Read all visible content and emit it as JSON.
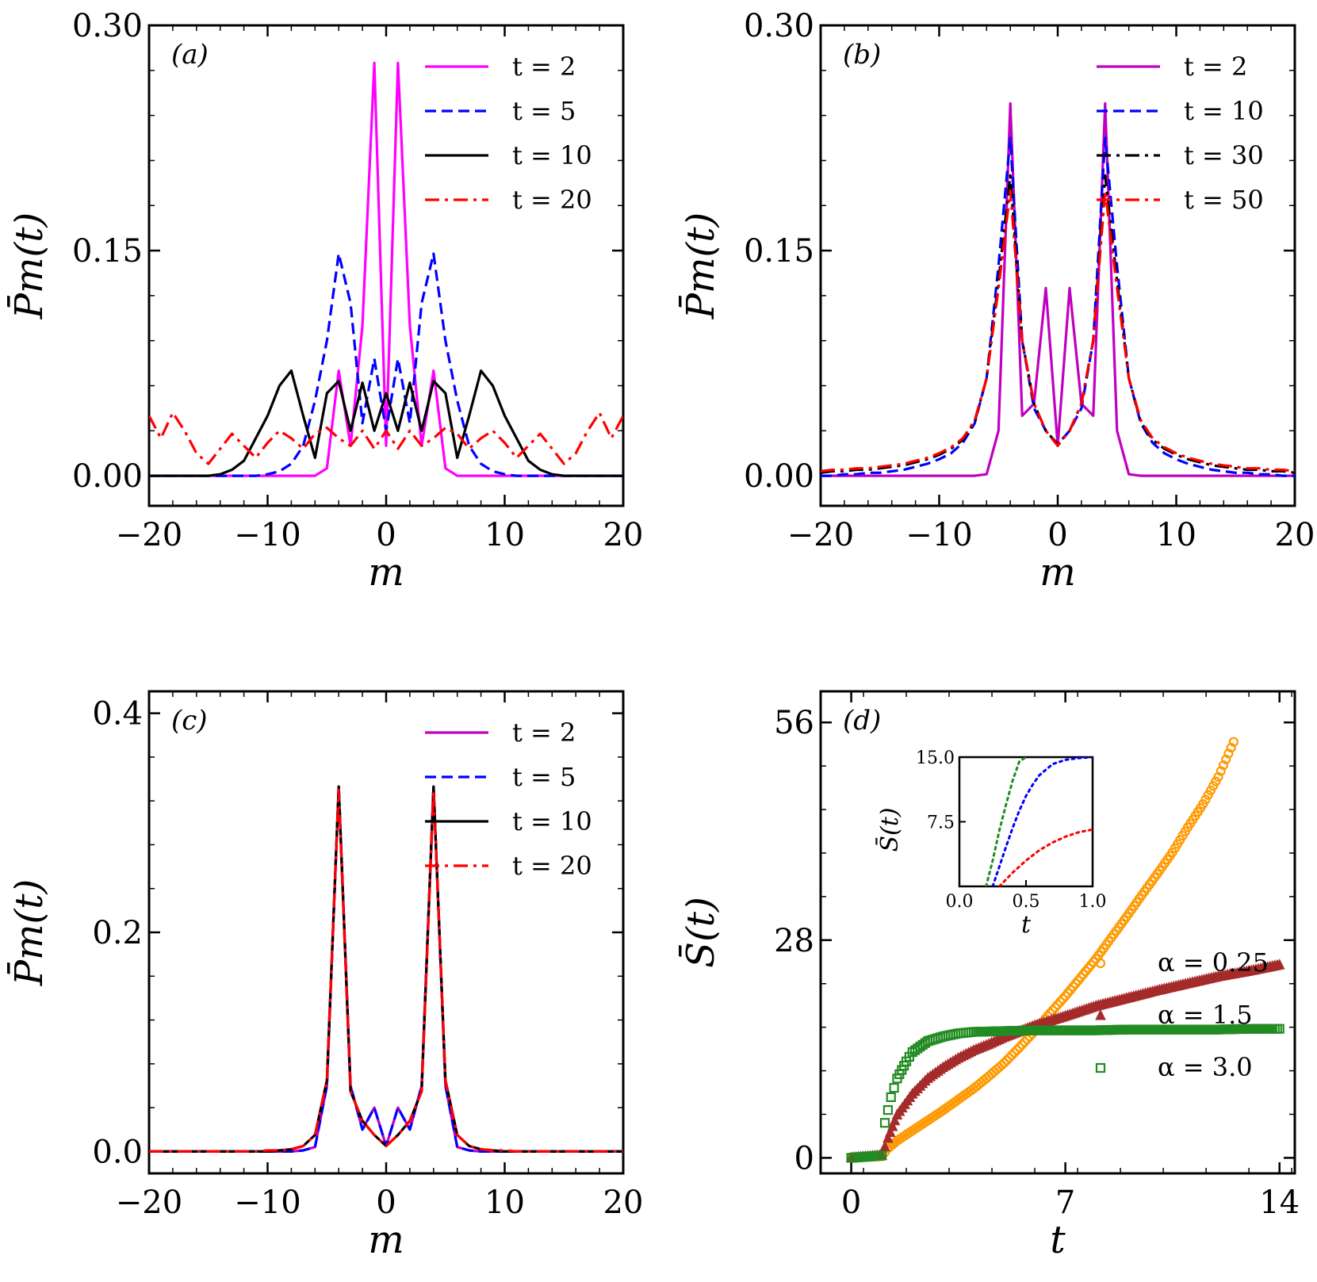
{
  "figure": {
    "panels": [
      {
        "id": "a",
        "tag": "(a)"
      },
      {
        "id": "b",
        "tag": "(b)"
      },
      {
        "id": "c",
        "tag": "(c)"
      },
      {
        "id": "d",
        "tag": "(d)"
      }
    ]
  },
  "chart_data": [
    {
      "id": "a",
      "type": "line",
      "title": "(a)",
      "xlabel": "m",
      "ylabel": "P̄m(t)",
      "xlim": [
        -20,
        20
      ],
      "ylim": [
        -0.02,
        0.3
      ],
      "xticks": [
        -20,
        -10,
        0,
        10,
        20
      ],
      "xtick_labels": [
        "−20",
        "−10",
        "0",
        "10",
        "20"
      ],
      "yticks": [
        0.0,
        0.15,
        0.3
      ],
      "ytick_labels": [
        "0.00",
        "0.15",
        "0.30"
      ],
      "legend_position": "top-right",
      "x": [
        -20,
        -19,
        -18,
        -17,
        -16,
        -15,
        -14,
        -13,
        -12,
        -11,
        -10,
        -9,
        -8,
        -7,
        -6,
        -5,
        -4,
        -3,
        -2,
        -1,
        0,
        1,
        2,
        3,
        4,
        5,
        6,
        7,
        8,
        9,
        10,
        11,
        12,
        13,
        14,
        15,
        16,
        17,
        18,
        19,
        20
      ],
      "series": [
        {
          "name": "t = 2",
          "color": "#ff00ff",
          "dash": "solid",
          "values": [
            0,
            0,
            0,
            0,
            0,
            0,
            0,
            0,
            0,
            0,
            0,
            0,
            0,
            0,
            0,
            0.005,
            0.07,
            0.02,
            0.1,
            0.275,
            0.02,
            0.275,
            0.1,
            0.02,
            0.07,
            0.005,
            0,
            0,
            0,
            0,
            0,
            0,
            0,
            0,
            0,
            0,
            0,
            0,
            0,
            0,
            0
          ]
        },
        {
          "name": "t = 5",
          "color": "#0000ff",
          "dash": "dashed",
          "values": [
            0,
            0,
            0,
            0,
            0,
            0,
            0,
            0,
            0,
            0,
            0.001,
            0.003,
            0.008,
            0.02,
            0.05,
            0.09,
            0.148,
            0.115,
            0.035,
            0.078,
            0.03,
            0.078,
            0.035,
            0.115,
            0.148,
            0.09,
            0.05,
            0.02,
            0.008,
            0.003,
            0.001,
            0,
            0,
            0,
            0,
            0,
            0,
            0,
            0,
            0,
            0
          ]
        },
        {
          "name": "t = 10",
          "color": "#000000",
          "dash": "solid",
          "values": [
            0,
            0,
            0,
            0,
            0,
            0,
            0.001,
            0.004,
            0.01,
            0.025,
            0.04,
            0.06,
            0.07,
            0.04,
            0.012,
            0.055,
            0.063,
            0.03,
            0.062,
            0.03,
            0.055,
            0.03,
            0.062,
            0.03,
            0.063,
            0.055,
            0.012,
            0.04,
            0.07,
            0.06,
            0.04,
            0.025,
            0.01,
            0.004,
            0.001,
            0,
            0,
            0,
            0,
            0,
            0
          ]
        },
        {
          "name": "t = 20",
          "color": "#ff0000",
          "dash": "dashdot",
          "values": [
            0.04,
            0.025,
            0.042,
            0.03,
            0.015,
            0.008,
            0.018,
            0.028,
            0.02,
            0.012,
            0.022,
            0.03,
            0.025,
            0.018,
            0.028,
            0.032,
            0.025,
            0.02,
            0.03,
            0.018,
            0.03,
            0.018,
            0.03,
            0.02,
            0.025,
            0.032,
            0.028,
            0.018,
            0.025,
            0.03,
            0.022,
            0.012,
            0.02,
            0.028,
            0.018,
            0.008,
            0.015,
            0.03,
            0.042,
            0.025,
            0.04
          ]
        }
      ]
    },
    {
      "id": "b",
      "type": "line",
      "title": "(b)",
      "xlabel": "m",
      "ylabel": "P̄m(t)",
      "xlim": [
        -20,
        20
      ],
      "ylim": [
        -0.02,
        0.3
      ],
      "xticks": [
        -20,
        -10,
        0,
        10,
        20
      ],
      "xtick_labels": [
        "−20",
        "−10",
        "0",
        "10",
        "20"
      ],
      "yticks": [
        0.0,
        0.15,
        0.3
      ],
      "ytick_labels": [
        "0.00",
        "0.15",
        "0.30"
      ],
      "legend_position": "top-right",
      "x": [
        -20,
        -19,
        -18,
        -17,
        -16,
        -15,
        -14,
        -13,
        -12,
        -11,
        -10,
        -9,
        -8,
        -7,
        -6,
        -5,
        -4,
        -3,
        -2,
        -1,
        0,
        1,
        2,
        3,
        4,
        5,
        6,
        7,
        8,
        9,
        10,
        11,
        12,
        13,
        14,
        15,
        16,
        17,
        18,
        19,
        20
      ],
      "series": [
        {
          "name": "t = 2",
          "color": "#c000c0",
          "dash": "solid",
          "values": [
            0,
            0,
            0,
            0,
            0,
            0,
            0,
            0,
            0,
            0,
            0,
            0,
            0,
            0,
            0.001,
            0.03,
            0.248,
            0.04,
            0.048,
            0.125,
            0.02,
            0.125,
            0.048,
            0.04,
            0.248,
            0.03,
            0.001,
            0,
            0,
            0,
            0,
            0,
            0,
            0,
            0,
            0,
            0,
            0,
            0,
            0,
            0
          ]
        },
        {
          "name": "t = 10",
          "color": "#0000ff",
          "dash": "dashed",
          "values": [
            0,
            0,
            0.001,
            0.001,
            0.002,
            0.002,
            0.003,
            0.004,
            0.006,
            0.008,
            0.011,
            0.015,
            0.022,
            0.035,
            0.065,
            0.14,
            0.225,
            0.09,
            0.045,
            0.03,
            0.021,
            0.03,
            0.045,
            0.09,
            0.225,
            0.14,
            0.065,
            0.035,
            0.022,
            0.015,
            0.011,
            0.008,
            0.006,
            0.004,
            0.003,
            0.002,
            0.002,
            0.001,
            0.001,
            0,
            0
          ]
        },
        {
          "name": "t = 30",
          "color": "#000000",
          "dash": "dashdot",
          "values": [
            0.002,
            0.003,
            0.003,
            0.004,
            0.004,
            0.005,
            0.006,
            0.007,
            0.009,
            0.011,
            0.014,
            0.018,
            0.024,
            0.036,
            0.065,
            0.13,
            0.2,
            0.09,
            0.048,
            0.03,
            0.021,
            0.03,
            0.048,
            0.09,
            0.2,
            0.13,
            0.065,
            0.036,
            0.024,
            0.018,
            0.014,
            0.011,
            0.009,
            0.007,
            0.006,
            0.005,
            0.004,
            0.004,
            0.003,
            0.003,
            0.002
          ]
        },
        {
          "name": "t = 50",
          "color": "#ff0000",
          "dash": "dashdot",
          "values": [
            0.003,
            0.004,
            0.004,
            0.005,
            0.005,
            0.006,
            0.007,
            0.008,
            0.01,
            0.012,
            0.015,
            0.019,
            0.025,
            0.037,
            0.065,
            0.125,
            0.19,
            0.09,
            0.048,
            0.03,
            0.02,
            0.03,
            0.048,
            0.09,
            0.19,
            0.125,
            0.065,
            0.037,
            0.025,
            0.019,
            0.015,
            0.012,
            0.01,
            0.008,
            0.007,
            0.006,
            0.005,
            0.005,
            0.004,
            0.004,
            0.003
          ]
        }
      ]
    },
    {
      "id": "c",
      "type": "line",
      "title": "(c)",
      "xlabel": "m",
      "ylabel": "P̄m(t)",
      "xlim": [
        -20,
        20
      ],
      "ylim": [
        -0.02,
        0.42
      ],
      "xticks": [
        -20,
        -10,
        0,
        10,
        20
      ],
      "xtick_labels": [
        "−20",
        "−10",
        "0",
        "10",
        "20"
      ],
      "yticks": [
        0.0,
        0.2,
        0.4
      ],
      "ytick_labels": [
        "0.0",
        "0.2",
        "0.4"
      ],
      "legend_position": "top-right",
      "x": [
        -20,
        -19,
        -18,
        -17,
        -16,
        -15,
        -14,
        -13,
        -12,
        -11,
        -10,
        -9,
        -8,
        -7,
        -6,
        -5,
        -4,
        -3,
        -2,
        -1,
        0,
        1,
        2,
        3,
        4,
        5,
        6,
        7,
        8,
        9,
        10,
        11,
        12,
        13,
        14,
        15,
        16,
        17,
        18,
        19,
        20
      ],
      "series": [
        {
          "name": "t = 2",
          "color": "#c000c0",
          "dash": "solid",
          "values": [
            0,
            0,
            0,
            0,
            0,
            0,
            0,
            0,
            0,
            0,
            0,
            0,
            0,
            0.001,
            0.004,
            0.06,
            0.333,
            0.06,
            0.02,
            0.04,
            0.005,
            0.04,
            0.02,
            0.06,
            0.333,
            0.06,
            0.004,
            0.001,
            0,
            0,
            0,
            0,
            0,
            0,
            0,
            0,
            0,
            0,
            0,
            0,
            0
          ]
        },
        {
          "name": "t = 5",
          "color": "#0000ff",
          "dash": "dashed",
          "values": [
            0,
            0,
            0,
            0,
            0,
            0,
            0,
            0,
            0,
            0,
            0,
            0,
            0,
            0.001,
            0.004,
            0.06,
            0.333,
            0.06,
            0.02,
            0.04,
            0.005,
            0.04,
            0.02,
            0.06,
            0.333,
            0.06,
            0.004,
            0.001,
            0,
            0,
            0,
            0,
            0,
            0,
            0,
            0,
            0,
            0,
            0,
            0,
            0
          ]
        },
        {
          "name": "t = 10",
          "color": "#000000",
          "dash": "solid",
          "values": [
            0,
            0,
            0,
            0,
            0,
            0,
            0,
            0,
            0,
            0,
            0,
            0.001,
            0.002,
            0.005,
            0.015,
            0.065,
            0.333,
            0.055,
            0.028,
            0.015,
            0.005,
            0.015,
            0.028,
            0.055,
            0.333,
            0.065,
            0.015,
            0.005,
            0.002,
            0.001,
            0,
            0,
            0,
            0,
            0,
            0,
            0,
            0,
            0,
            0,
            0
          ]
        },
        {
          "name": "t = 20",
          "color": "#ff0000",
          "dash": "dashdot",
          "values": [
            0,
            0,
            0,
            0,
            0,
            0,
            0,
            0,
            0,
            0,
            0.001,
            0.001,
            0.002,
            0.005,
            0.015,
            0.065,
            0.33,
            0.055,
            0.028,
            0.015,
            0.005,
            0.015,
            0.028,
            0.055,
            0.33,
            0.065,
            0.015,
            0.005,
            0.002,
            0.001,
            0.001,
            0,
            0,
            0,
            0,
            0,
            0,
            0,
            0,
            0,
            0
          ]
        }
      ]
    },
    {
      "id": "d",
      "type": "scatter",
      "title": "(d)",
      "xlabel": "t",
      "ylabel": "S̄(t)",
      "xlim": [
        -1,
        14.5
      ],
      "ylim": [
        -2,
        60
      ],
      "xticks": [
        0,
        7,
        14
      ],
      "xtick_labels": [
        "0",
        "7",
        "14"
      ],
      "yticks": [
        0,
        28,
        56
      ],
      "ytick_labels": [
        "0",
        "28",
        "56"
      ],
      "legend_position": "bottom-right",
      "series": [
        {
          "name": "α = 0.25",
          "color": "#ff9900",
          "marker": "circle",
          "x": [
            0,
            1,
            1.2,
            1.5,
            2,
            2.5,
            3,
            3.5,
            4,
            4.5,
            5,
            5.5,
            6,
            6.5,
            7,
            7.5,
            8,
            8.5,
            9,
            9.5,
            10,
            10.5,
            11,
            11.5,
            12,
            12.5
          ],
          "y": [
            0,
            0.2,
            1.2,
            2.2,
            3.5,
            4.8,
            6.1,
            7.5,
            8.9,
            10.5,
            12.2,
            14.2,
            16.3,
            18.6,
            20.8,
            23.2,
            25.6,
            28.3,
            31,
            33.8,
            36.5,
            39.3,
            42.5,
            45.5,
            49,
            53.5
          ]
        },
        {
          "name": "α = 1.5",
          "color": "#a52a2a",
          "marker": "triangle",
          "x": [
            0,
            1,
            1.2,
            1.5,
            2,
            2.5,
            3,
            3.5,
            4,
            4.5,
            5,
            6,
            7,
            8,
            9,
            10,
            11,
            12,
            13,
            14
          ],
          "y": [
            0,
            0.3,
            2.5,
            5.5,
            8.2,
            10.2,
            11.6,
            12.8,
            13.8,
            14.6,
            15.5,
            17,
            18.2,
            19.5,
            20.5,
            21.5,
            22.4,
            23.3,
            24,
            24.8
          ]
        },
        {
          "name": "α = 3.0",
          "color": "#228b22",
          "marker": "square",
          "x": [
            0,
            1,
            1.1,
            1.3,
            1.5,
            1.8,
            2,
            2.5,
            3,
            3.5,
            4,
            5,
            6,
            7,
            8,
            9,
            10,
            11,
            12,
            13,
            14
          ],
          "y": [
            0,
            0.3,
            4.5,
            7.8,
            10.2,
            12.4,
            13.6,
            15,
            15.6,
            16,
            16.2,
            16.3,
            16.4,
            16.4,
            16.4,
            16.5,
            16.5,
            16.5,
            16.5,
            16.6,
            16.6
          ]
        }
      ],
      "inset": {
        "xlabel": "t",
        "ylabel": "S̄(t)",
        "xlim": [
          0,
          1
        ],
        "ylim": [
          0,
          15
        ],
        "xticks": [
          0.0,
          0.5,
          1.0
        ],
        "xtick_labels": [
          "0.0",
          "0.5",
          "1.0"
        ],
        "yticks": [
          7.5,
          15.0
        ],
        "ytick_labels": [
          "7.5",
          "15.0"
        ],
        "series": [
          {
            "color": "#228b22",
            "x": [
              0.2,
              0.25,
              0.3,
              0.35,
              0.4,
              0.45,
              0.5
            ],
            "y": [
              0,
              3,
              6.5,
              9.5,
              12.3,
              14.5,
              15
            ]
          },
          {
            "color": "#0000ff",
            "x": [
              0.25,
              0.3,
              0.35,
              0.4,
              0.45,
              0.5,
              0.55,
              0.6,
              0.7,
              0.8,
              0.9,
              1.0
            ],
            "y": [
              0,
              2.3,
              4.6,
              6.8,
              8.8,
              10.5,
              11.8,
              12.9,
              14.2,
              14.7,
              14.9,
              15
            ]
          },
          {
            "color": "#ff0000",
            "x": [
              0.3,
              0.35,
              0.4,
              0.5,
              0.6,
              0.7,
              0.8,
              0.9,
              1.0
            ],
            "y": [
              0,
              0.8,
              1.6,
              3,
              4.2,
              5.1,
              5.8,
              6.3,
              6.6
            ]
          }
        ]
      }
    }
  ]
}
